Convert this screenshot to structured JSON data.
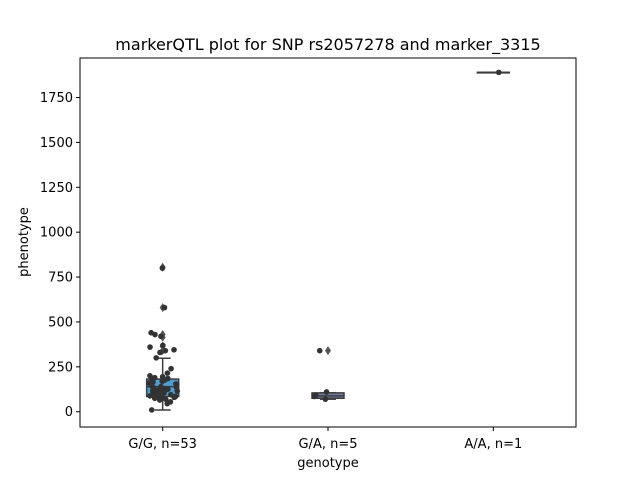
{
  "chart_data": {
    "type": "box",
    "title": "markerQTL plot for SNP rs2057278 and marker_3315",
    "xlabel": "genotype",
    "ylabel": "phenotype",
    "ylim": [
      -85,
      1970
    ],
    "yticks": [
      0,
      250,
      500,
      750,
      1000,
      1250,
      1500,
      1750
    ],
    "grid": false,
    "categories": [
      "G/G, n=53",
      "G/A, n=5",
      "A/A, n=1"
    ],
    "colors": {
      "box_G/G": "#4a9fd1",
      "box_G/A": "#6f7ea0",
      "box_A/A": "#5e8e68",
      "lines": "#3c3c3c",
      "points": "#333333"
    },
    "boxes": [
      {
        "category": "G/G, n=53",
        "whisker_low": 10,
        "q1": 85,
        "median": 140,
        "q3": 182,
        "whisker_high": 298,
        "outliers": [
          340,
          365,
          415,
          430,
          580,
          805
        ]
      },
      {
        "category": "G/A, n=5",
        "whisker_low": 70,
        "q1": 75,
        "median": 88,
        "q3": 105,
        "whisker_high": 105,
        "outliers": [
          340
        ]
      },
      {
        "category": "A/A, n=1",
        "whisker_low": 1890,
        "q1": 1890,
        "median": 1890,
        "q3": 1890,
        "whisker_high": 1890,
        "outliers": []
      }
    ],
    "points": [
      {
        "category": "G/G, n=53",
        "values": [
          800,
          580,
          440,
          430,
          420,
          370,
          360,
          345,
          340,
          330,
          300,
          240,
          215,
          200,
          195,
          190,
          185,
          180,
          175,
          170,
          165,
          160,
          155,
          150,
          145,
          140,
          138,
          135,
          130,
          128,
          125,
          120,
          118,
          115,
          110,
          108,
          105,
          100,
          98,
          95,
          92,
          90,
          88,
          85,
          82,
          80,
          78,
          75,
          70,
          65,
          55,
          45,
          10
        ]
      },
      {
        "category": "G/A, n=5",
        "values": [
          340,
          110,
          92,
          85,
          70
        ]
      },
      {
        "category": "A/A, n=1",
        "values": [
          1890
        ]
      }
    ]
  }
}
